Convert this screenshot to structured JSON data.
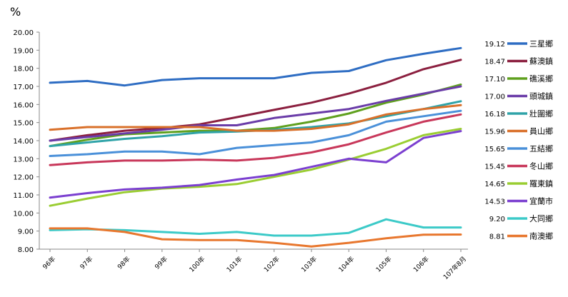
{
  "chart_data": {
    "type": "line",
    "title": "",
    "ylabel": "%",
    "xlabel": "",
    "ylim": [
      8.0,
      20.0
    ],
    "ytick_step": 1.0,
    "ytick_labels": [
      "8.00",
      "9.00",
      "10.00",
      "11.00",
      "12.00",
      "13.00",
      "14.00",
      "15.00",
      "16.00",
      "17.00",
      "18.00",
      "19.00",
      "20.00"
    ],
    "grid": false,
    "legend_position": "right",
    "categories": [
      "96年",
      "97年",
      "98年",
      "99年",
      "100年",
      "101年",
      "102年",
      "103年",
      "104年",
      "105年",
      "106年",
      "107年8月"
    ],
    "series": [
      {
        "name": "三星鄉",
        "last_label": "19.12",
        "color": "#2E6DC3",
        "values": [
          17.2,
          17.3,
          17.05,
          17.35,
          17.45,
          17.45,
          17.45,
          17.75,
          17.85,
          18.45,
          18.8,
          19.12
        ]
      },
      {
        "name": "蘇澳鎮",
        "last_label": "18.47",
        "color": "#8B1F3F",
        "values": [
          14.0,
          14.3,
          14.55,
          14.7,
          14.9,
          15.3,
          15.7,
          16.1,
          16.6,
          17.2,
          17.95,
          18.47
        ]
      },
      {
        "name": "礁溪鄉",
        "last_label": "17.10",
        "color": "#5FA01E",
        "values": [
          13.7,
          14.05,
          14.35,
          14.45,
          14.55,
          14.55,
          14.7,
          15.05,
          15.5,
          16.1,
          16.55,
          17.1
        ]
      },
      {
        "name": "頭城鎮",
        "last_label": "17.00",
        "color": "#6A3CA8",
        "values": [
          14.0,
          14.2,
          14.4,
          14.6,
          14.85,
          14.85,
          15.25,
          15.5,
          15.75,
          16.2,
          16.6,
          17.0
        ]
      },
      {
        "name": "壯圍鄉",
        "last_label": "16.18",
        "color": "#2FA3A8",
        "values": [
          13.7,
          13.9,
          14.1,
          14.25,
          14.45,
          14.5,
          14.6,
          14.75,
          14.95,
          15.35,
          15.75,
          16.18
        ]
      },
      {
        "name": "員山鄉",
        "last_label": "15.96",
        "color": "#D9702A",
        "values": [
          14.6,
          14.75,
          14.75,
          14.75,
          14.75,
          14.55,
          14.55,
          14.65,
          14.9,
          15.45,
          15.75,
          15.96
        ]
      },
      {
        "name": "五結鄉",
        "last_label": "15.65",
        "color": "#4A90D9",
        "values": [
          13.15,
          13.25,
          13.4,
          13.4,
          13.25,
          13.6,
          13.75,
          13.9,
          14.3,
          15.05,
          15.35,
          15.65
        ]
      },
      {
        "name": "冬山鄉",
        "last_label": "15.45",
        "color": "#C8375A",
        "values": [
          12.65,
          12.8,
          12.9,
          12.9,
          12.95,
          12.9,
          13.05,
          13.35,
          13.8,
          14.45,
          15.05,
          15.45
        ]
      },
      {
        "name": "羅東鎮",
        "last_label": "14.65",
        "color": "#9ACD32",
        "values": [
          10.4,
          10.8,
          11.15,
          11.35,
          11.45,
          11.6,
          12.0,
          12.4,
          12.95,
          13.55,
          14.3,
          14.65
        ]
      },
      {
        "name": "宜蘭市",
        "last_label": "14.53",
        "color": "#7B3FD0",
        "values": [
          10.85,
          11.1,
          11.3,
          11.4,
          11.55,
          11.85,
          12.1,
          12.55,
          13.0,
          12.8,
          14.15,
          14.53
        ]
      },
      {
        "name": "大同鄉",
        "last_label": "9.20",
        "color": "#3CCAC8",
        "values": [
          9.05,
          9.1,
          9.05,
          8.95,
          8.85,
          8.95,
          8.75,
          8.75,
          8.9,
          9.65,
          9.2,
          9.2
        ]
      },
      {
        "name": "南澳鄉",
        "last_label": "8.81",
        "color": "#E8772E",
        "values": [
          9.15,
          9.15,
          8.95,
          8.55,
          8.5,
          8.5,
          8.35,
          8.15,
          8.35,
          8.6,
          8.8,
          8.81
        ]
      }
    ]
  }
}
